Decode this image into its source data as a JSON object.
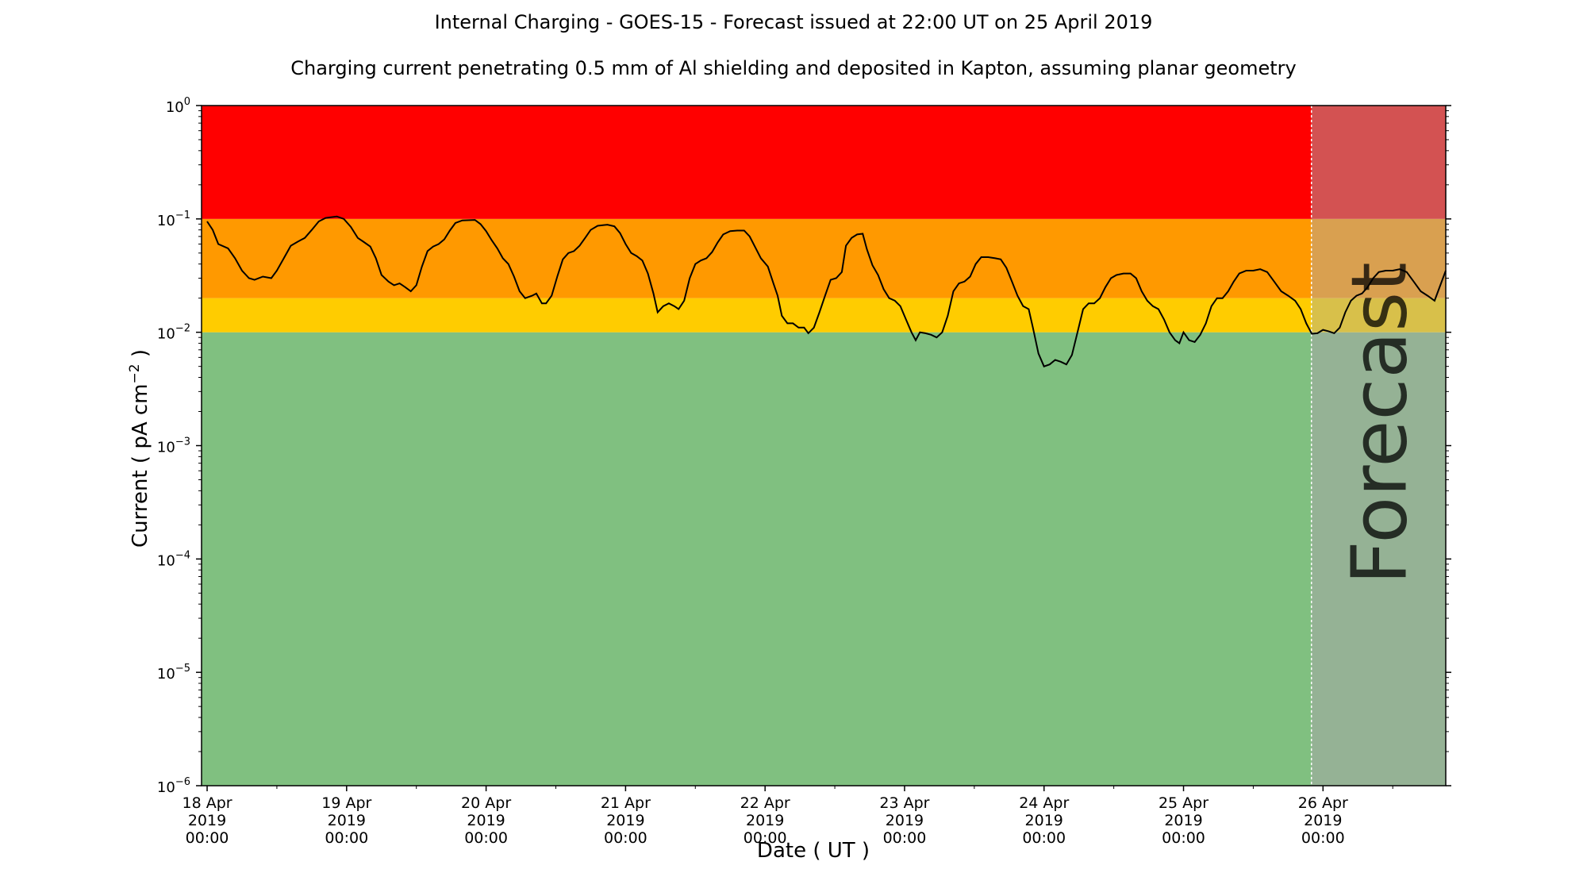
{
  "title": "Internal Charging - GOES-15 - Forecast issued at 22:00 UT on 25 April 2019",
  "subtitle": "Charging current penetrating 0.5 mm of Al shielding and deposited in Kapton, assuming planar geometry",
  "chart_data": {
    "type": "line",
    "title": "Internal Charging - GOES-15 - Forecast issued at 22:00 UT on 25 April 2019",
    "subtitle": "Charging current penetrating 0.5 mm of Al shielding and deposited in Kapton, assuming planar geometry",
    "xlabel": "Date ( UT )",
    "ylabel_text": "Current ( pA cm",
    "ylabel_sup": "−2",
    "ylabel_end": " )",
    "y_scale": "log",
    "ylim": [
      1e-06,
      1
    ],
    "xlim_days": [
      17.96,
      26.88
    ],
    "x_tick_labels": [
      [
        "18 Apr",
        "2019",
        "00:00"
      ],
      [
        "19 Apr",
        "2019",
        "00:00"
      ],
      [
        "20 Apr",
        "2019",
        "00:00"
      ],
      [
        "21 Apr",
        "2019",
        "00:00"
      ],
      [
        "22 Apr",
        "2019",
        "00:00"
      ],
      [
        "23 Apr",
        "2019",
        "00:00"
      ],
      [
        "24 Apr",
        "2019",
        "00:00"
      ],
      [
        "25 Apr",
        "2019",
        "00:00"
      ],
      [
        "26 Apr",
        "2019",
        "00:00"
      ]
    ],
    "x_tick_days": [
      18,
      19,
      20,
      21,
      22,
      23,
      24,
      25,
      26
    ],
    "y_tick_base": "10",
    "y_tick_exponents": [
      "−6",
      "−5",
      "−4",
      "−3",
      "−2",
      "−1",
      "0"
    ],
    "bands": [
      {
        "from": 1e-06,
        "to": 0.01,
        "color": "#80c080"
      },
      {
        "from": 0.01,
        "to": 0.02,
        "color": "#ffcc00"
      },
      {
        "from": 0.02,
        "to": 0.1,
        "color": "#ff9900"
      },
      {
        "from": 0.1,
        "to": 1,
        "color": "#ff0000"
      }
    ],
    "forecast_start_day": 25.917,
    "forecast_label": "Forecast",
    "forecast_bands": [
      {
        "from": 1e-06,
        "to": 0.01,
        "color": "#95b295"
      },
      {
        "from": 0.01,
        "to": 0.02,
        "color": "#d8c04a"
      },
      {
        "from": 0.02,
        "to": 0.1,
        "color": "#d9a050"
      },
      {
        "from": 0.1,
        "to": 1,
        "color": "#d35252"
      }
    ],
    "series": [
      {
        "color": "#000000",
        "points": [
          [
            18.0,
            0.095
          ],
          [
            18.04,
            0.08
          ],
          [
            18.08,
            0.06
          ],
          [
            18.15,
            0.055
          ],
          [
            18.2,
            0.045
          ],
          [
            18.25,
            0.035
          ],
          [
            18.3,
            0.03
          ],
          [
            18.34,
            0.029
          ],
          [
            18.4,
            0.031
          ],
          [
            18.46,
            0.03
          ],
          [
            18.5,
            0.035
          ],
          [
            18.55,
            0.045
          ],
          [
            18.6,
            0.058
          ],
          [
            18.65,
            0.063
          ],
          [
            18.7,
            0.068
          ],
          [
            18.75,
            0.08
          ],
          [
            18.8,
            0.095
          ],
          [
            18.85,
            0.102
          ],
          [
            18.93,
            0.105
          ],
          [
            18.98,
            0.1
          ],
          [
            19.03,
            0.085
          ],
          [
            19.08,
            0.068
          ],
          [
            19.12,
            0.063
          ],
          [
            19.17,
            0.057
          ],
          [
            19.21,
            0.045
          ],
          [
            19.25,
            0.032
          ],
          [
            19.3,
            0.028
          ],
          [
            19.34,
            0.026
          ],
          [
            19.38,
            0.027
          ],
          [
            19.42,
            0.025
          ],
          [
            19.46,
            0.023
          ],
          [
            19.5,
            0.026
          ],
          [
            19.54,
            0.038
          ],
          [
            19.58,
            0.052
          ],
          [
            19.62,
            0.057
          ],
          [
            19.66,
            0.06
          ],
          [
            19.7,
            0.066
          ],
          [
            19.74,
            0.079
          ],
          [
            19.78,
            0.092
          ],
          [
            19.83,
            0.097
          ],
          [
            19.92,
            0.098
          ],
          [
            19.96,
            0.09
          ],
          [
            20.0,
            0.078
          ],
          [
            20.04,
            0.065
          ],
          [
            20.08,
            0.055
          ],
          [
            20.12,
            0.045
          ],
          [
            20.16,
            0.04
          ],
          [
            20.2,
            0.031
          ],
          [
            20.24,
            0.023
          ],
          [
            20.28,
            0.02
          ],
          [
            20.33,
            0.021
          ],
          [
            20.36,
            0.022
          ],
          [
            20.4,
            0.018
          ],
          [
            20.43,
            0.018
          ],
          [
            20.47,
            0.021
          ],
          [
            20.51,
            0.031
          ],
          [
            20.55,
            0.044
          ],
          [
            20.59,
            0.05
          ],
          [
            20.63,
            0.052
          ],
          [
            20.67,
            0.058
          ],
          [
            20.71,
            0.068
          ],
          [
            20.75,
            0.08
          ],
          [
            20.8,
            0.087
          ],
          [
            20.87,
            0.089
          ],
          [
            20.92,
            0.086
          ],
          [
            20.96,
            0.075
          ],
          [
            21.0,
            0.06
          ],
          [
            21.04,
            0.05
          ],
          [
            21.08,
            0.047
          ],
          [
            21.12,
            0.043
          ],
          [
            21.16,
            0.033
          ],
          [
            21.2,
            0.022
          ],
          [
            21.23,
            0.015
          ],
          [
            21.27,
            0.017
          ],
          [
            21.31,
            0.018
          ],
          [
            21.35,
            0.017
          ],
          [
            21.38,
            0.016
          ],
          [
            21.42,
            0.019
          ],
          [
            21.46,
            0.03
          ],
          [
            21.5,
            0.04
          ],
          [
            21.54,
            0.043
          ],
          [
            21.58,
            0.045
          ],
          [
            21.62,
            0.051
          ],
          [
            21.66,
            0.062
          ],
          [
            21.7,
            0.073
          ],
          [
            21.75,
            0.078
          ],
          [
            21.8,
            0.079
          ],
          [
            21.85,
            0.079
          ],
          [
            21.89,
            0.07
          ],
          [
            21.93,
            0.056
          ],
          [
            21.97,
            0.045
          ],
          [
            22.02,
            0.038
          ],
          [
            22.06,
            0.027
          ],
          [
            22.09,
            0.021
          ],
          [
            22.12,
            0.014
          ],
          [
            22.16,
            0.012
          ],
          [
            22.2,
            0.012
          ],
          [
            22.24,
            0.011
          ],
          [
            22.28,
            0.011
          ],
          [
            22.31,
            0.0098
          ],
          [
            22.35,
            0.011
          ],
          [
            22.39,
            0.015
          ],
          [
            22.43,
            0.021
          ],
          [
            22.47,
            0.029
          ],
          [
            22.51,
            0.03
          ],
          [
            22.55,
            0.034
          ],
          [
            22.58,
            0.058
          ],
          [
            22.62,
            0.068
          ],
          [
            22.66,
            0.073
          ],
          [
            22.7,
            0.074
          ],
          [
            22.73,
            0.054
          ],
          [
            22.77,
            0.039
          ],
          [
            22.81,
            0.032
          ],
          [
            22.85,
            0.024
          ],
          [
            22.89,
            0.02
          ],
          [
            22.93,
            0.019
          ],
          [
            22.97,
            0.017
          ],
          [
            23.01,
            0.013
          ],
          [
            23.05,
            0.01
          ],
          [
            23.08,
            0.0085
          ],
          [
            23.11,
            0.01
          ],
          [
            23.15,
            0.0098
          ],
          [
            23.19,
            0.0095
          ],
          [
            23.23,
            0.009
          ],
          [
            23.27,
            0.01
          ],
          [
            23.31,
            0.014
          ],
          [
            23.35,
            0.023
          ],
          [
            23.39,
            0.027
          ],
          [
            23.43,
            0.028
          ],
          [
            23.47,
            0.031
          ],
          [
            23.51,
            0.04
          ],
          [
            23.55,
            0.046
          ],
          [
            23.6,
            0.046
          ],
          [
            23.65,
            0.045
          ],
          [
            23.69,
            0.044
          ],
          [
            23.73,
            0.037
          ],
          [
            23.77,
            0.028
          ],
          [
            23.81,
            0.021
          ],
          [
            23.85,
            0.017
          ],
          [
            23.89,
            0.016
          ],
          [
            23.92,
            0.011
          ],
          [
            23.96,
            0.0065
          ],
          [
            24.0,
            0.005
          ],
          [
            24.04,
            0.0052
          ],
          [
            24.08,
            0.0057
          ],
          [
            24.12,
            0.0055
          ],
          [
            24.16,
            0.0052
          ],
          [
            24.2,
            0.0063
          ],
          [
            24.24,
            0.01
          ],
          [
            24.28,
            0.016
          ],
          [
            24.32,
            0.018
          ],
          [
            24.36,
            0.018
          ],
          [
            24.4,
            0.02
          ],
          [
            24.44,
            0.025
          ],
          [
            24.48,
            0.03
          ],
          [
            24.52,
            0.032
          ],
          [
            24.57,
            0.033
          ],
          [
            24.62,
            0.033
          ],
          [
            24.66,
            0.03
          ],
          [
            24.7,
            0.023
          ],
          [
            24.74,
            0.019
          ],
          [
            24.78,
            0.017
          ],
          [
            24.82,
            0.016
          ],
          [
            24.86,
            0.013
          ],
          [
            24.9,
            0.01
          ],
          [
            24.94,
            0.0085
          ],
          [
            24.97,
            0.008
          ],
          [
            25.0,
            0.01
          ],
          [
            25.04,
            0.0085
          ],
          [
            25.08,
            0.0082
          ],
          [
            25.12,
            0.0095
          ],
          [
            25.16,
            0.012
          ],
          [
            25.2,
            0.017
          ],
          [
            25.24,
            0.02
          ],
          [
            25.28,
            0.02
          ],
          [
            25.32,
            0.023
          ],
          [
            25.36,
            0.028
          ],
          [
            25.4,
            0.033
          ],
          [
            25.45,
            0.035
          ],
          [
            25.5,
            0.035
          ],
          [
            25.55,
            0.036
          ],
          [
            25.6,
            0.034
          ],
          [
            25.65,
            0.028
          ],
          [
            25.7,
            0.023
          ],
          [
            25.75,
            0.021
          ],
          [
            25.8,
            0.019
          ],
          [
            25.84,
            0.016
          ],
          [
            25.88,
            0.012
          ],
          [
            25.92,
            0.0097
          ],
          [
            25.96,
            0.0098
          ],
          [
            26.0,
            0.0105
          ],
          [
            26.04,
            0.0102
          ],
          [
            26.08,
            0.0098
          ],
          [
            26.12,
            0.011
          ],
          [
            26.16,
            0.015
          ],
          [
            26.2,
            0.019
          ],
          [
            26.24,
            0.021
          ],
          [
            26.28,
            0.022
          ],
          [
            26.32,
            0.025
          ],
          [
            26.36,
            0.03
          ],
          [
            26.4,
            0.034
          ],
          [
            26.45,
            0.035
          ],
          [
            26.5,
            0.035
          ],
          [
            26.55,
            0.036
          ],
          [
            26.6,
            0.034
          ],
          [
            26.65,
            0.028
          ],
          [
            26.7,
            0.023
          ],
          [
            26.75,
            0.021
          ],
          [
            26.8,
            0.019
          ],
          [
            26.88,
            0.035
          ]
        ]
      }
    ]
  }
}
